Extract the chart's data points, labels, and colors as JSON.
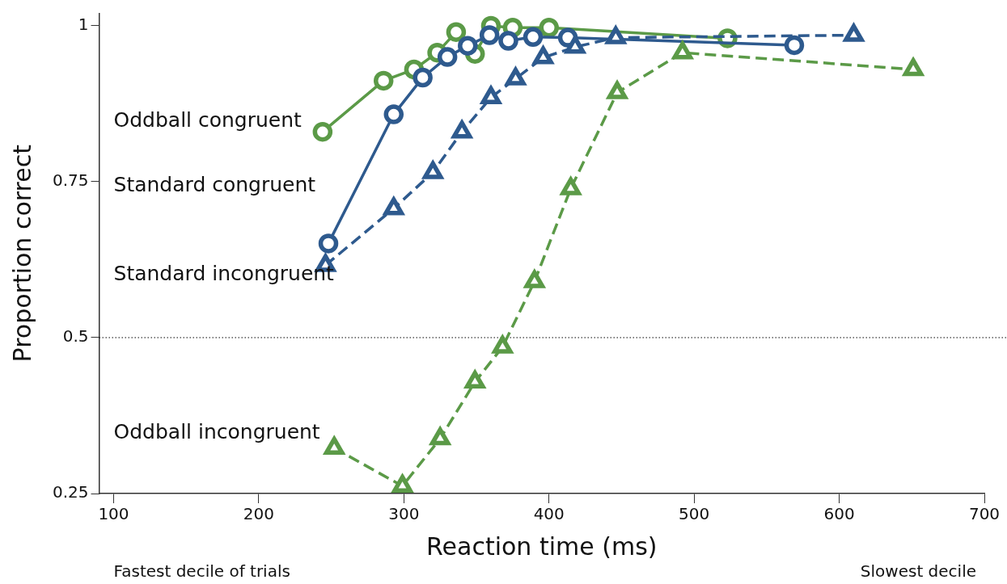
{
  "chart_data": {
    "type": "line",
    "xlabel": "Reaction time (ms)",
    "ylabel": "Proportion correct",
    "xlim": [
      90,
      700
    ],
    "xticks": [
      100,
      200,
      300,
      400,
      500,
      600,
      700
    ],
    "ylim": [
      0.25,
      1.02
    ],
    "yticks": [
      0.25,
      0.5,
      0.75,
      1
    ],
    "grid": false,
    "legend": false,
    "series": [
      {
        "name": "Oddball congruent",
        "color": "#5b9a47",
        "marker": "circle",
        "line_style": "solid",
        "x": [
          244,
          286,
          307,
          323,
          336,
          349,
          360,
          375,
          400,
          523
        ],
        "values": [
          0.83,
          0.912,
          0.93,
          0.957,
          0.99,
          0.955,
          1.0,
          0.997,
          0.997,
          0.98
        ]
      },
      {
        "name": "Standard congruent",
        "color": "#2e5a8e",
        "marker": "circle",
        "line_style": "solid",
        "x": [
          248,
          293,
          313,
          330,
          344,
          359,
          372,
          389,
          413,
          569
        ],
        "values": [
          0.651,
          0.858,
          0.917,
          0.95,
          0.968,
          0.985,
          0.976,
          0.982,
          0.981,
          0.969
        ]
      },
      {
        "name": "Standard incongruent",
        "color": "#2e5a8e",
        "marker": "triangle",
        "line_style": "dashed",
        "x": [
          246,
          293,
          320,
          340,
          360,
          377,
          396,
          418,
          446,
          610
        ],
        "values": [
          0.616,
          0.707,
          0.765,
          0.83,
          0.885,
          0.915,
          0.949,
          0.966,
          0.981,
          0.985
        ]
      },
      {
        "name": "Oddball incongruent",
        "color": "#5b9a47",
        "marker": "triangle",
        "line_style": "dashed",
        "x": [
          252,
          299,
          325,
          349,
          368,
          390,
          415,
          447,
          492,
          651
        ],
        "values": [
          0.323,
          0.262,
          0.338,
          0.429,
          0.485,
          0.59,
          0.739,
          0.893,
          0.957,
          0.93
        ]
      }
    ],
    "ref_lines": [
      {
        "axis": "y",
        "value": 0.5,
        "color": "#000000",
        "line_style": "dotted"
      }
    ],
    "annotations": [
      "Fastest decile of trials",
      "Slowest decile"
    ]
  }
}
